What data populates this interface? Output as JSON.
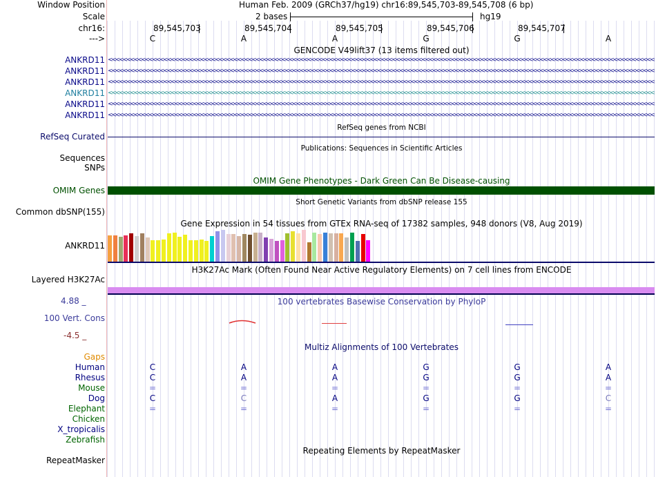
{
  "header": {
    "window_position_label": "Window Position",
    "window_position_value": "Human Feb. 2009 (GRCh37/hg19)   chr16:89,545,703-89,545,708 (6 bp)",
    "scale_label": "Scale",
    "scale_value": "2 bases",
    "assembly": "hg19",
    "chrom_label": "chr16:",
    "strand_label": "--->",
    "positions": [
      "89,545,703",
      "89,545,704",
      "89,545,705",
      "89,545,706",
      "89,545,707"
    ],
    "bases": [
      "C",
      "A",
      "A",
      "G",
      "G",
      "A"
    ]
  },
  "gencode": {
    "title": "GENCODE V49lift37 (13 items filtered out)",
    "genes": [
      "ANKRD11",
      "ANKRD11",
      "ANKRD11",
      "ANKRD11",
      "ANKRD11",
      "ANKRD11"
    ],
    "chevrons": "<<<<<<<<<<<<<<<<<<<<<<<<<<<<<<<<<<<<<<<<<<<<<<<<<<<<<<<<<<<<<<<<<<<<<<<<<<<<<<<<<<<<<<<<<<<<<<<<<<<<<<<<<<<<<<<<<<<<<<<<<<<<<<<<<<<<<<<<<<<<<<<<<<<<<<<<<<<<<<<<<<<<<<<<<<<<<<<<<<<<<<<<<<<<<<<<<<"
  },
  "refseq": {
    "title": "RefSeq genes from NCBI",
    "label": "RefSeq Curated"
  },
  "publications": {
    "title": "Publications: Sequences in Scientific Articles",
    "label": "Sequences"
  },
  "snps": {
    "label": "SNPs"
  },
  "omim": {
    "title": "OMIM Gene Phenotypes - Dark Green Can Be Disease-causing",
    "label": "OMIM Genes",
    "color": "#005000"
  },
  "dbsnp": {
    "title": "Short Genetic Variants from dbSNP release 155",
    "label": "Common dbSNP(155)"
  },
  "gtex": {
    "title": "Gene Expression in 54 tissues from GTEx RNA-seq of 17382 samples, 948 donors (V8, Aug 2019)",
    "label": "ANKRD11",
    "bars": [
      {
        "color": "#f6a040",
        "h": 38
      },
      {
        "color": "#f08040",
        "h": 38
      },
      {
        "color": "#a0a870",
        "h": 36
      },
      {
        "color": "#e83058",
        "h": 38
      },
      {
        "color": "#a00000",
        "h": 41
      },
      {
        "color": "#d0d0d0",
        "h": 37
      },
      {
        "color": "#a08060",
        "h": 41
      },
      {
        "color": "#e0c8b8",
        "h": 35
      },
      {
        "color": "#f0f020",
        "h": 31
      },
      {
        "color": "#f0f020",
        "h": 31
      },
      {
        "color": "#f0f020",
        "h": 32
      },
      {
        "color": "#f0f020",
        "h": 41
      },
      {
        "color": "#f0f020",
        "h": 42
      },
      {
        "color": "#f0f020",
        "h": 36
      },
      {
        "color": "#f0f020",
        "h": 39
      },
      {
        "color": "#f0f020",
        "h": 31
      },
      {
        "color": "#f0f020",
        "h": 31
      },
      {
        "color": "#f0f020",
        "h": 32
      },
      {
        "color": "#f0f020",
        "h": 30
      },
      {
        "color": "#00d0d0",
        "h": 37
      },
      {
        "color": "#9090e8",
        "h": 44
      },
      {
        "color": "#c8c8f0",
        "h": 46
      },
      {
        "color": "#e8d0d8",
        "h": 40
      },
      {
        "color": "#e0c0b0",
        "h": 40
      },
      {
        "color": "#d8b8a8",
        "h": 37
      },
      {
        "color": "#a08860",
        "h": 40
      },
      {
        "color": "#705030",
        "h": 39
      },
      {
        "color": "#c8b090",
        "h": 42
      },
      {
        "color": "#c8b0c8",
        "h": 42
      },
      {
        "color": "#8040b0",
        "h": 35
      },
      {
        "color": "#d8a0d8",
        "h": 33
      },
      {
        "color": "#c050c0",
        "h": 30
      },
      {
        "color": "#e060e0",
        "h": 31
      },
      {
        "color": "#a0c030",
        "h": 41
      },
      {
        "color": "#e8e030",
        "h": 44
      },
      {
        "color": "#ffe0a8",
        "h": 41
      },
      {
        "color": "#f8c8d0",
        "h": 46
      },
      {
        "color": "#b07830",
        "h": 28
      },
      {
        "color": "#a8e8a0",
        "h": 42
      },
      {
        "color": "#f8c8b0",
        "h": 40
      },
      {
        "color": "#3880d8",
        "h": 42
      },
      {
        "color": "#d0c0b0",
        "h": 41
      },
      {
        "color": "#d8b0a0",
        "h": 41
      },
      {
        "color": "#f8a850",
        "h": 41
      },
      {
        "color": "#c0c0c0",
        "h": 35
      },
      {
        "color": "#00a050",
        "h": 42
      },
      {
        "color": "#5070b0",
        "h": 30
      },
      {
        "color": "#e80000",
        "h": 40
      },
      {
        "color": "#ff00ff",
        "h": 31
      }
    ]
  },
  "h3k27ac": {
    "title": "H3K27Ac Mark (Often Found Near Active Regulatory Elements) on 7 cell lines from ENCODE",
    "label": "Layered H3K27Ac",
    "color": "#d98cf0"
  },
  "phylop": {
    "title": "100 vertebrates Basewise Conservation by PhyloP",
    "label": "100 Vert. Cons",
    "max": "4.88 _",
    "min": "-4.5 _"
  },
  "multiz": {
    "title": "Multiz Alignments of 100 Vertebrates",
    "gaps_label": "Gaps",
    "species": [
      {
        "name": "Human",
        "color": "#000080",
        "cells": [
          "C",
          "A",
          "A",
          "G",
          "G",
          "A"
        ]
      },
      {
        "name": "Rhesus",
        "color": "#000080",
        "cells": [
          "C",
          "A",
          "A",
          "G",
          "G",
          "A"
        ]
      },
      {
        "name": "Mouse",
        "color": "#006400",
        "cells": [
          "=",
          "=",
          "=",
          "=",
          "=",
          "="
        ]
      },
      {
        "name": "Dog",
        "color": "#000080",
        "cells": [
          "C",
          "C",
          "A",
          "G",
          "G",
          "C"
        ]
      },
      {
        "name": "Elephant",
        "color": "#006400",
        "cells": [
          "=",
          "=",
          "=",
          "=",
          "=",
          "="
        ]
      },
      {
        "name": "Chicken",
        "color": "#006400",
        "cells": [
          "",
          "",
          "",
          "",
          "",
          ""
        ]
      },
      {
        "name": "X_tropicalis",
        "color": "#000080",
        "cells": [
          "",
          "",
          "",
          "",
          "",
          ""
        ]
      },
      {
        "name": "Zebrafish",
        "color": "#006400",
        "cells": [
          "",
          "",
          "",
          "",
          "",
          ""
        ]
      }
    ]
  },
  "repeatmasker": {
    "title": "Repeating Elements by RepeatMasker",
    "label": "RepeatMasker"
  }
}
